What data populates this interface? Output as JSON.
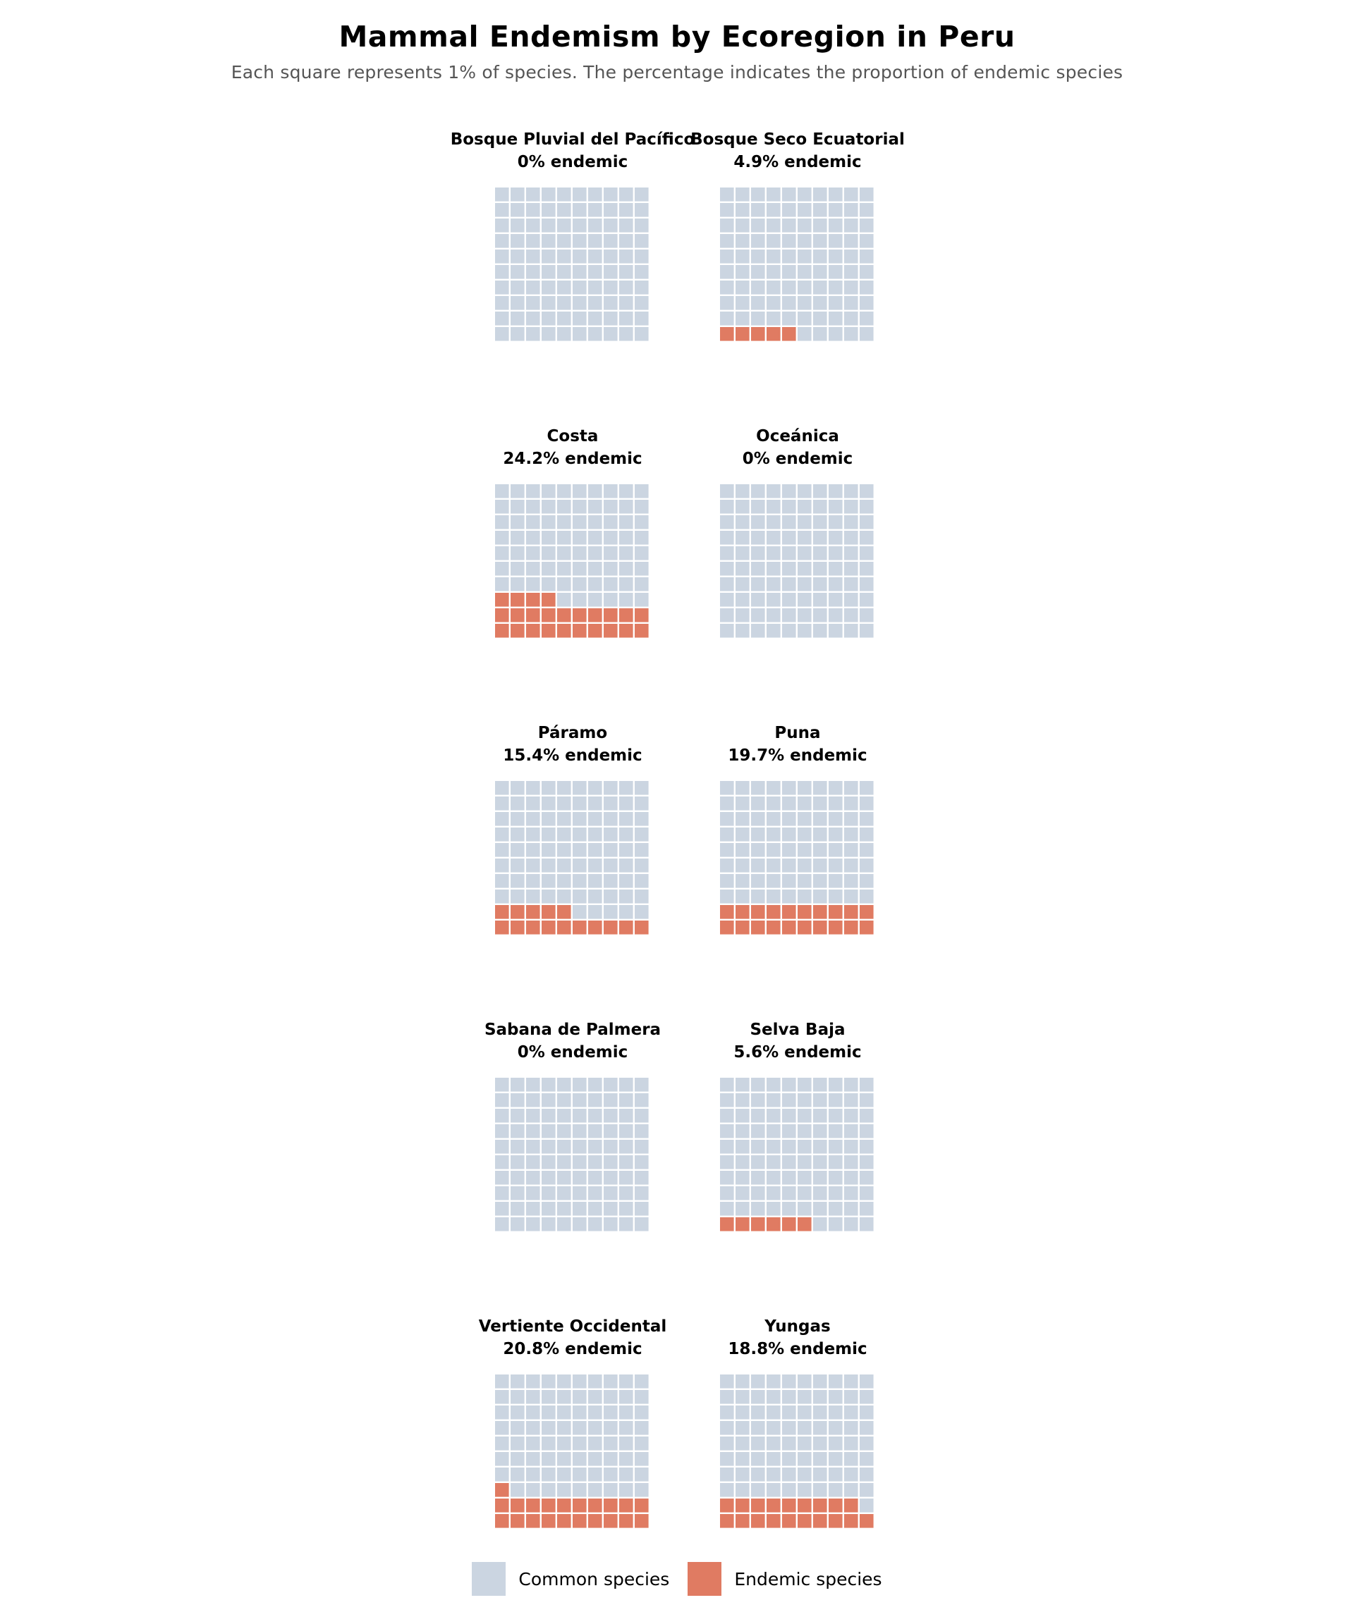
{
  "chart_data": {
    "type": "waffle",
    "title": "Mammal Endemism by Ecoregion in Peru",
    "subtitle": "Each square represents 1% of species. The percentage indicates the proportion of endemic species",
    "grid": {
      "rows": 10,
      "cols": 10
    },
    "panel_suffix": "% endemic",
    "panels": [
      {
        "name": "Bosque Pluvial del Pacífico",
        "endemic_pct": 0
      },
      {
        "name": "Bosque Seco Ecuatorial",
        "endemic_pct": 4.9
      },
      {
        "name": "Costa",
        "endemic_pct": 24.2
      },
      {
        "name": "Oceánica",
        "endemic_pct": 0
      },
      {
        "name": "Páramo",
        "endemic_pct": 15.4
      },
      {
        "name": "Puna",
        "endemic_pct": 19.7
      },
      {
        "name": "Sabana de Palmera",
        "endemic_pct": 0
      },
      {
        "name": "Selva Baja",
        "endemic_pct": 5.6
      },
      {
        "name": "Vertiente Occidental",
        "endemic_pct": 20.8
      },
      {
        "name": "Yungas",
        "endemic_pct": 18.8
      }
    ],
    "legend": {
      "common_label": "Common species",
      "endemic_label": "Endemic species",
      "placement": "bottom-center"
    },
    "colors": {
      "common": "#cbd5e1",
      "endemic": "#e07b62"
    }
  }
}
